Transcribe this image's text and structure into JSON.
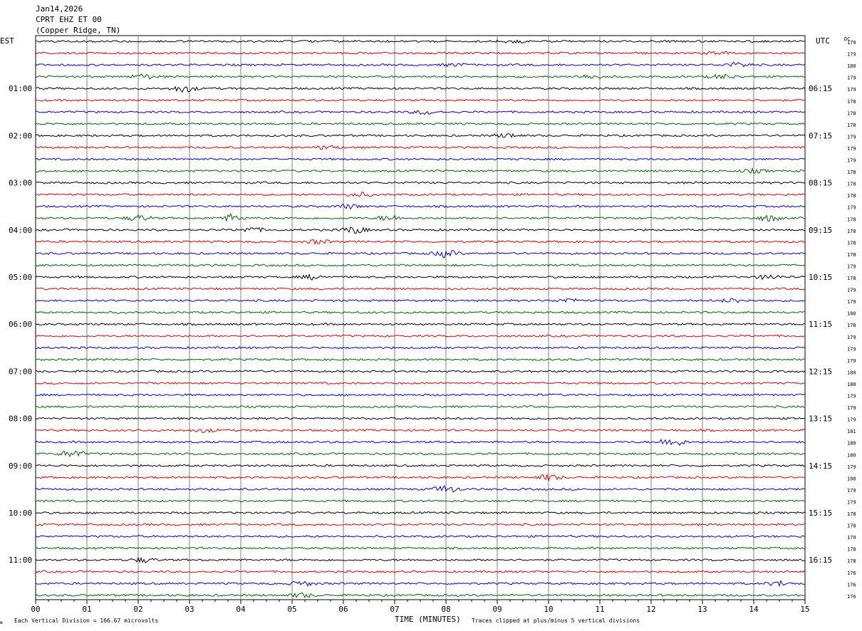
{
  "header": {
    "date": "Jan14,2026",
    "station": "CPRT EHZ ET 00",
    "location": "(Copper Ridge, TN)"
  },
  "left_timezone": "EST",
  "right_timezone": "UTC",
  "dc_label": "DC",
  "footer": {
    "division_note": "Each Vertical Division =  166.67 microvolts",
    "xlabel": "TIME (MINUTES)",
    "clip_note": "Traces clipped at plus/minus 5 vertical divisions",
    "mark": "ᴍ"
  },
  "chart_data": {
    "type": "line",
    "title": "Jan14,2026 CPRT EHZ ET 00 (Copper Ridge, TN)",
    "xlabel": "TIME (MINUTES)",
    "ylabel": "",
    "xlim": [
      0,
      15
    ],
    "x_ticks": [
      "00",
      "01",
      "02",
      "03",
      "04",
      "05",
      "06",
      "07",
      "08",
      "09",
      "10",
      "11",
      "12",
      "13",
      "14",
      "15"
    ],
    "trace_minutes": 15,
    "trace_colors": [
      "#000000",
      "#e00000",
      "#0000d0",
      "#006400"
    ],
    "grid_color": "#808080",
    "left_hour_labels": [
      "01:00",
      "02:00",
      "03:00",
      "04:00",
      "05:00",
      "06:00",
      "07:00",
      "08:00",
      "09:00",
      "10:00",
      "11:00"
    ],
    "right_hour_labels": [
      "06:15",
      "07:15",
      "08:15",
      "09:15",
      "10:15",
      "11:15",
      "12:15",
      "13:15",
      "14:15",
      "15:15",
      "16:15"
    ],
    "dc_offsets": [
      179,
      179,
      180,
      179,
      179,
      178,
      178,
      178,
      179,
      179,
      179,
      178,
      178,
      178,
      179,
      178,
      178,
      178,
      178,
      179,
      178,
      179,
      179,
      180,
      178,
      179,
      179,
      179,
      180,
      180,
      179,
      179,
      179,
      181,
      180,
      180,
      179,
      180,
      179,
      179,
      178,
      178,
      179,
      178,
      178,
      176,
      176,
      176
    ],
    "events": [
      {
        "row": 0,
        "minute": 9.3,
        "amp": 1.3
      },
      {
        "row": 1,
        "minute": 13.3,
        "amp": 1.4
      },
      {
        "row": 2,
        "minute": 8.2,
        "amp": 1.2
      },
      {
        "row": 2,
        "minute": 13.7,
        "amp": 2.0
      },
      {
        "row": 3,
        "minute": 2.1,
        "amp": 2.2
      },
      {
        "row": 3,
        "minute": 10.8,
        "amp": 1.8
      },
      {
        "row": 3,
        "minute": 13.4,
        "amp": 1.8
      },
      {
        "row": 4,
        "minute": 2.9,
        "amp": 3.0
      },
      {
        "row": 6,
        "minute": 7.6,
        "amp": 1.8
      },
      {
        "row": 8,
        "minute": 9.2,
        "amp": 1.8
      },
      {
        "row": 9,
        "minute": 5.7,
        "amp": 1.8
      },
      {
        "row": 11,
        "minute": 14.0,
        "amp": 1.5
      },
      {
        "row": 13,
        "minute": 6.3,
        "amp": 1.8
      },
      {
        "row": 14,
        "minute": 6.1,
        "amp": 1.8
      },
      {
        "row": 15,
        "minute": 2.0,
        "amp": 2.5
      },
      {
        "row": 15,
        "minute": 3.8,
        "amp": 3.0
      },
      {
        "row": 15,
        "minute": 6.9,
        "amp": 2.5
      },
      {
        "row": 15,
        "minute": 14.3,
        "amp": 2.5
      },
      {
        "row": 16,
        "minute": 4.2,
        "amp": 2.0
      },
      {
        "row": 16,
        "minute": 6.2,
        "amp": 3.0
      },
      {
        "row": 17,
        "minute": 5.5,
        "amp": 1.8
      },
      {
        "row": 18,
        "minute": 8.0,
        "amp": 3.0
      },
      {
        "row": 20,
        "minute": 5.4,
        "amp": 1.8
      },
      {
        "row": 20,
        "minute": 14.3,
        "amp": 2.0
      },
      {
        "row": 22,
        "minute": 10.4,
        "amp": 1.8
      },
      {
        "row": 22,
        "minute": 13.6,
        "amp": 1.8
      },
      {
        "row": 33,
        "minute": 3.3,
        "amp": 1.5
      },
      {
        "row": 34,
        "minute": 12.4,
        "amp": 4.0
      },
      {
        "row": 35,
        "minute": 0.7,
        "amp": 3.0
      },
      {
        "row": 37,
        "minute": 10.0,
        "amp": 2.5
      },
      {
        "row": 38,
        "minute": 8.0,
        "amp": 3.0
      },
      {
        "row": 44,
        "minute": 2.1,
        "amp": 2.0
      },
      {
        "row": 46,
        "minute": 5.2,
        "amp": 2.0
      },
      {
        "row": 46,
        "minute": 14.5,
        "amp": 2.0
      },
      {
        "row": 47,
        "minute": 5.2,
        "amp": 1.8
      }
    ]
  }
}
